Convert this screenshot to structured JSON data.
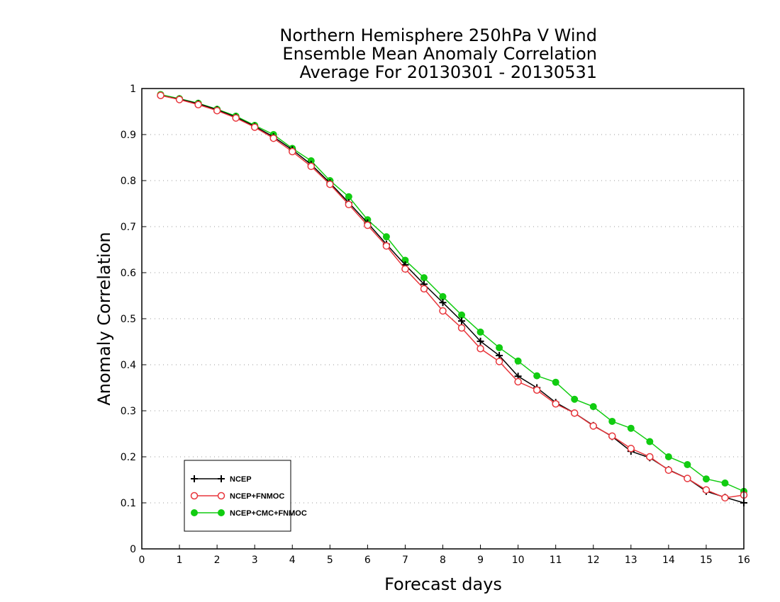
{
  "chart_data": {
    "type": "line",
    "title": [
      "Northern Hemisphere 250hPa V Wind",
      "Ensemble Mean Anomaly Correlation",
      "Average For 20130301 - 20130531"
    ],
    "xlabel": "Forecast days",
    "ylabel": "Anomaly Correlation",
    "xlim": [
      0,
      16
    ],
    "ylim": [
      0,
      1
    ],
    "xticks": [
      0,
      1,
      2,
      3,
      4,
      5,
      6,
      7,
      8,
      9,
      10,
      11,
      12,
      13,
      14,
      15,
      16
    ],
    "yticks": [
      0,
      0.1,
      0.2,
      0.3,
      0.4,
      0.5,
      0.6,
      0.7,
      0.8,
      0.9,
      1
    ],
    "ytick_labels": [
      "0",
      "0.1",
      "0.2",
      "0.3",
      "0.4",
      "0.5",
      "0.6",
      "0.7",
      "0.8",
      "0.9",
      "1"
    ],
    "grid": "horizontal dotted",
    "legend_position": "bottom-left",
    "x": [
      0.5,
      1,
      1.5,
      2,
      2.5,
      3,
      3.5,
      4,
      4.5,
      5,
      5.5,
      6,
      6.5,
      7,
      7.5,
      8,
      8.5,
      9,
      9.5,
      10,
      10.5,
      11,
      11.5,
      12,
      12.5,
      13,
      13.5,
      14,
      14.5,
      15,
      15.5,
      16
    ],
    "series": [
      {
        "name": "NCEP",
        "color": "#000000",
        "marker": "plus",
        "values": [
          0.985,
          0.977,
          0.967,
          0.954,
          0.938,
          0.918,
          0.895,
          0.867,
          0.835,
          0.795,
          0.752,
          0.708,
          0.662,
          0.617,
          0.575,
          0.535,
          0.495,
          0.451,
          0.42,
          0.375,
          0.35,
          0.318,
          0.295,
          0.268,
          0.244,
          0.212,
          0.198,
          0.172,
          0.153,
          0.125,
          0.112,
          0.1
        ]
      },
      {
        "name": "NCEP+FNMOC",
        "color": "#e8353b",
        "marker": "open-circle",
        "values": [
          0.985,
          0.976,
          0.965,
          0.952,
          0.936,
          0.916,
          0.892,
          0.863,
          0.831,
          0.792,
          0.748,
          0.703,
          0.658,
          0.608,
          0.565,
          0.517,
          0.48,
          0.435,
          0.407,
          0.363,
          0.345,
          0.315,
          0.295,
          0.267,
          0.245,
          0.218,
          0.2,
          0.171,
          0.153,
          0.128,
          0.111,
          0.117
        ]
      },
      {
        "name": "NCEP+CMC+FNMOC",
        "color": "#11cc11",
        "marker": "filled-circle",
        "values": [
          0.987,
          0.978,
          0.968,
          0.955,
          0.94,
          0.92,
          0.9,
          0.87,
          0.843,
          0.8,
          0.765,
          0.715,
          0.678,
          0.627,
          0.589,
          0.548,
          0.508,
          0.471,
          0.437,
          0.408,
          0.376,
          0.362,
          0.325,
          0.309,
          0.277,
          0.262,
          0.233,
          0.2,
          0.183,
          0.152,
          0.143,
          0.125
        ]
      }
    ]
  }
}
